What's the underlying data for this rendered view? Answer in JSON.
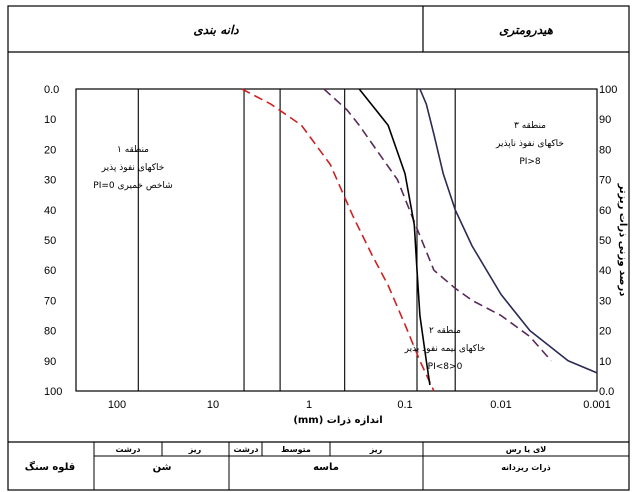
{
  "header": {
    "left_title": "دانه بندی",
    "right_title": "هیدرومتری"
  },
  "chart_data": {
    "type": "line",
    "title": "",
    "xlabel": "اندازه ذرات (mm)",
    "ylabel_right": "درصد وزنی ذرات ریزتر",
    "x_scale": "log",
    "x_reversed": true,
    "xlim": [
      200,
      0.001
    ],
    "x_ticks": [
      100,
      10,
      1,
      0.1,
      0.01,
      0.001
    ],
    "x_tick_labels": [
      "100",
      "10",
      "1",
      "0.1",
      "0.01",
      "0.001"
    ],
    "y_left_ticks": [
      "0.0",
      "10",
      "20",
      "30",
      "40",
      "50",
      "60",
      "70",
      "80",
      "90",
      "100"
    ],
    "y_right_ticks": [
      "100",
      "90",
      "80",
      "70",
      "60",
      "50",
      "40",
      "30",
      "20",
      "10",
      "0.0"
    ],
    "y_right_values": [
      100,
      90,
      80,
      70,
      60,
      50,
      40,
      30,
      20,
      10,
      0
    ],
    "ylim": [
      0,
      100
    ],
    "grid": false,
    "vertical_lines_x": [
      60,
      4.75,
      2,
      0.425,
      0.075,
      0.03
    ],
    "series": [
      {
        "style": "dashed",
        "color": "#cc2222",
        "x": [
          5,
          2.5,
          1.2,
          0.6,
          0.35,
          0.22,
          0.15,
          0.1,
          0.07,
          0.05
        ],
        "y": [
          100,
          95,
          88,
          75,
          58,
          45,
          35,
          22,
          10,
          0
        ]
      },
      {
        "style": "dashed",
        "color": "#5a2a5a",
        "x": [
          0.7,
          0.4,
          0.3,
          0.2,
          0.12,
          0.08,
          0.05,
          0.03,
          0.02,
          0.01,
          0.005,
          0.003
        ],
        "y": [
          100,
          93,
          88,
          80,
          70,
          56,
          40,
          34,
          30,
          25,
          18,
          10
        ]
      },
      {
        "style": "solid",
        "color": "#000000",
        "x": [
          0.3,
          0.15,
          0.1,
          0.08,
          0.075,
          0.07,
          0.06,
          0.055
        ],
        "y": [
          100,
          88,
          72,
          55,
          40,
          25,
          10,
          2
        ]
      },
      {
        "style": "solid",
        "color": "#2a2a55",
        "x": [
          0.07,
          0.06,
          0.05,
          0.04,
          0.03,
          0.02,
          0.01,
          0.005,
          0.002,
          0.001
        ],
        "y": [
          100,
          95,
          85,
          72,
          60,
          48,
          32,
          20,
          10,
          6
        ]
      }
    ],
    "annotations": {
      "zone1": {
        "title": "منطقه ۱",
        "line1": "خاکهای نفوذ پذیر",
        "line2": "شاخص خمیری PI=0"
      },
      "zone2": {
        "title": "منطقه ۲",
        "line1": "خاکهای نیمه نفوذ پذیر",
        "line2": "0<PI<8"
      },
      "zone3": {
        "title": "منطقه ۳",
        "line1": "خاکهای نفوذ ناپذیر",
        "line2": "PI>8"
      }
    }
  },
  "table": {
    "boulder": "قلوه سنگ",
    "gravel": {
      "name": "شن",
      "coarse": "درشت",
      "fine": "ریز"
    },
    "sand": {
      "name": "ماسه",
      "coarse": "درشت",
      "medium": "متوسط",
      "fine": "ریز"
    },
    "fines": {
      "name": "لای یا رس",
      "sub": "ذرات ریزدانه"
    }
  }
}
